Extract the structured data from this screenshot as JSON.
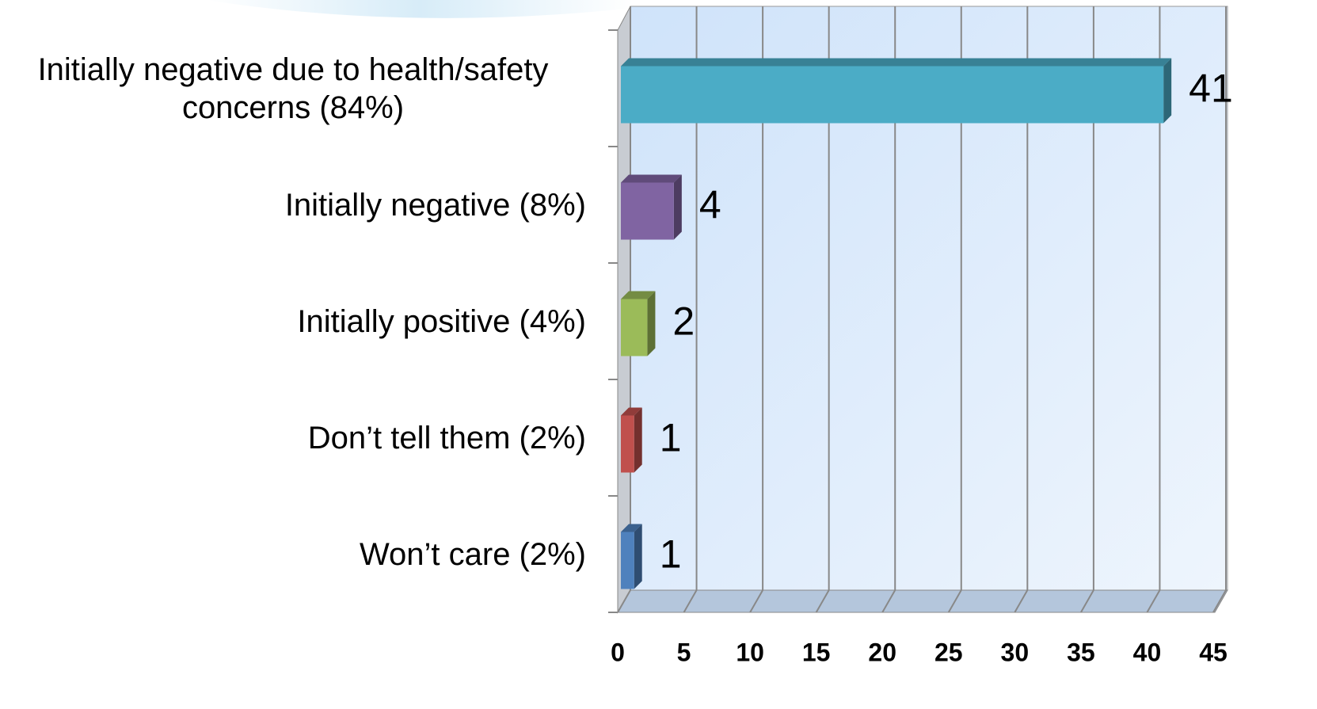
{
  "chart_data": {
    "type": "bar",
    "orientation": "horizontal",
    "categories": [
      "Initially negative due to health/safety concerns (84%)",
      "Initially negative (8%)",
      "Initially positive (4%)",
      "Don’t tell them (2%)",
      "Won’t care (2%)"
    ],
    "values": [
      41,
      4,
      2,
      1,
      1
    ],
    "colors": [
      "#4bacc6",
      "#8064a2",
      "#9bbb59",
      "#c0504d",
      "#4f81bd"
    ],
    "xlim": [
      0,
      45
    ],
    "xticks": [
      0,
      5,
      10,
      15,
      20,
      25,
      30,
      35,
      40,
      45
    ],
    "grid": true
  }
}
